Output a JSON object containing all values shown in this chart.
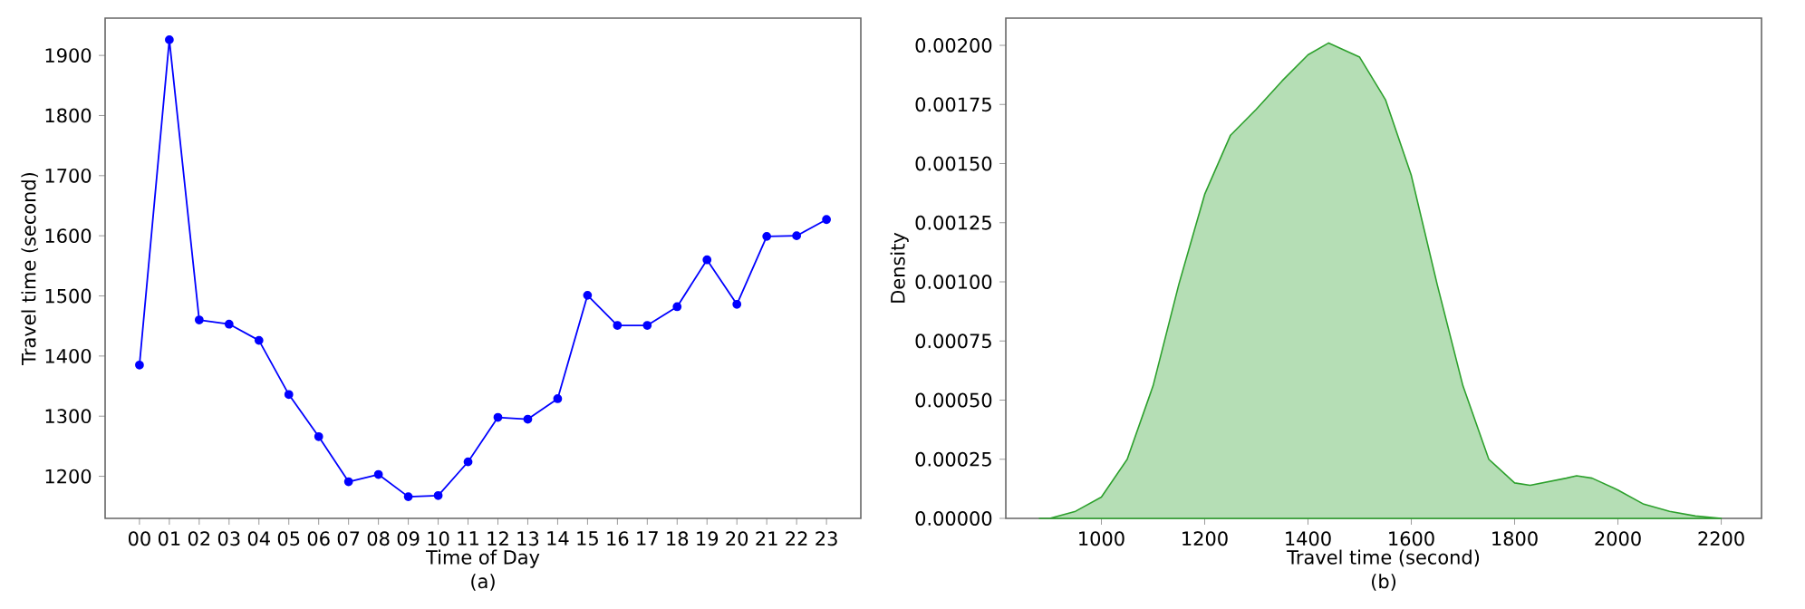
{
  "chart_data": [
    {
      "type": "line",
      "categories": [
        "00",
        "01",
        "02",
        "03",
        "04",
        "05",
        "06",
        "07",
        "08",
        "09",
        "10",
        "11",
        "12",
        "13",
        "14",
        "15",
        "16",
        "17",
        "18",
        "19",
        "20",
        "21",
        "22",
        "23"
      ],
      "values": [
        1385,
        1926,
        1460,
        1453,
        1426,
        1336,
        1266,
        1191,
        1203,
        1166,
        1168,
        1224,
        1298,
        1295,
        1329,
        1501,
        1451,
        1451,
        1482,
        1560,
        1486,
        1599,
        1600,
        1627
      ],
      "color": "#0000ff",
      "marker": "circle",
      "line_style": "solid",
      "xlabel": "Time of Day",
      "ylabel": "Travel time (second)",
      "ylim": [
        1130,
        1962
      ],
      "yticks": [
        1200,
        1300,
        1400,
        1500,
        1600,
        1700,
        1800,
        1900
      ],
      "annotations": [
        "(a)"
      ]
    },
    {
      "type": "area",
      "x": [
        880,
        900,
        950,
        1000,
        1050,
        1100,
        1150,
        1200,
        1250,
        1300,
        1350,
        1400,
        1440,
        1500,
        1550,
        1600,
        1650,
        1700,
        1750,
        1800,
        1830,
        1900,
        1920,
        1950,
        2000,
        2050,
        2100,
        2150,
        2200
      ],
      "values": [
        0,
        0,
        3e-05,
        9e-05,
        0.00025,
        0.00056,
        0.00099,
        0.00137,
        0.00162,
        0.00173,
        0.00185,
        0.00196,
        0.00201,
        0.00195,
        0.00177,
        0.00145,
        0.00099,
        0.00056,
        0.00025,
        0.00015,
        0.00014,
        0.00017,
        0.00018,
        0.00017,
        0.00012,
        6e-05,
        3e-05,
        1e-05,
        0
      ],
      "color": "#2ca02c",
      "xlabel": "Travel time (second)",
      "ylabel": "Density",
      "xlim": [
        815,
        2278
      ],
      "xticks": [
        1000,
        1200,
        1400,
        1600,
        1800,
        2000,
        2200
      ],
      "ylim": [
        0,
        0.002115
      ],
      "yticks": [
        {
          "value": 0,
          "label": "0.00000"
        },
        {
          "value": 0.00025,
          "label": "0.00025"
        },
        {
          "value": 0.0005,
          "label": "0.00050"
        },
        {
          "value": 0.00075,
          "label": "0.00075"
        },
        {
          "value": 0.001,
          "label": "0.00100"
        },
        {
          "value": 0.00125,
          "label": "0.00125"
        },
        {
          "value": 0.0015,
          "label": "0.00150"
        },
        {
          "value": 0.00175,
          "label": "0.00175"
        },
        {
          "value": 0.002,
          "label": "0.00200"
        }
      ],
      "annotations": [
        "(b)"
      ]
    }
  ]
}
